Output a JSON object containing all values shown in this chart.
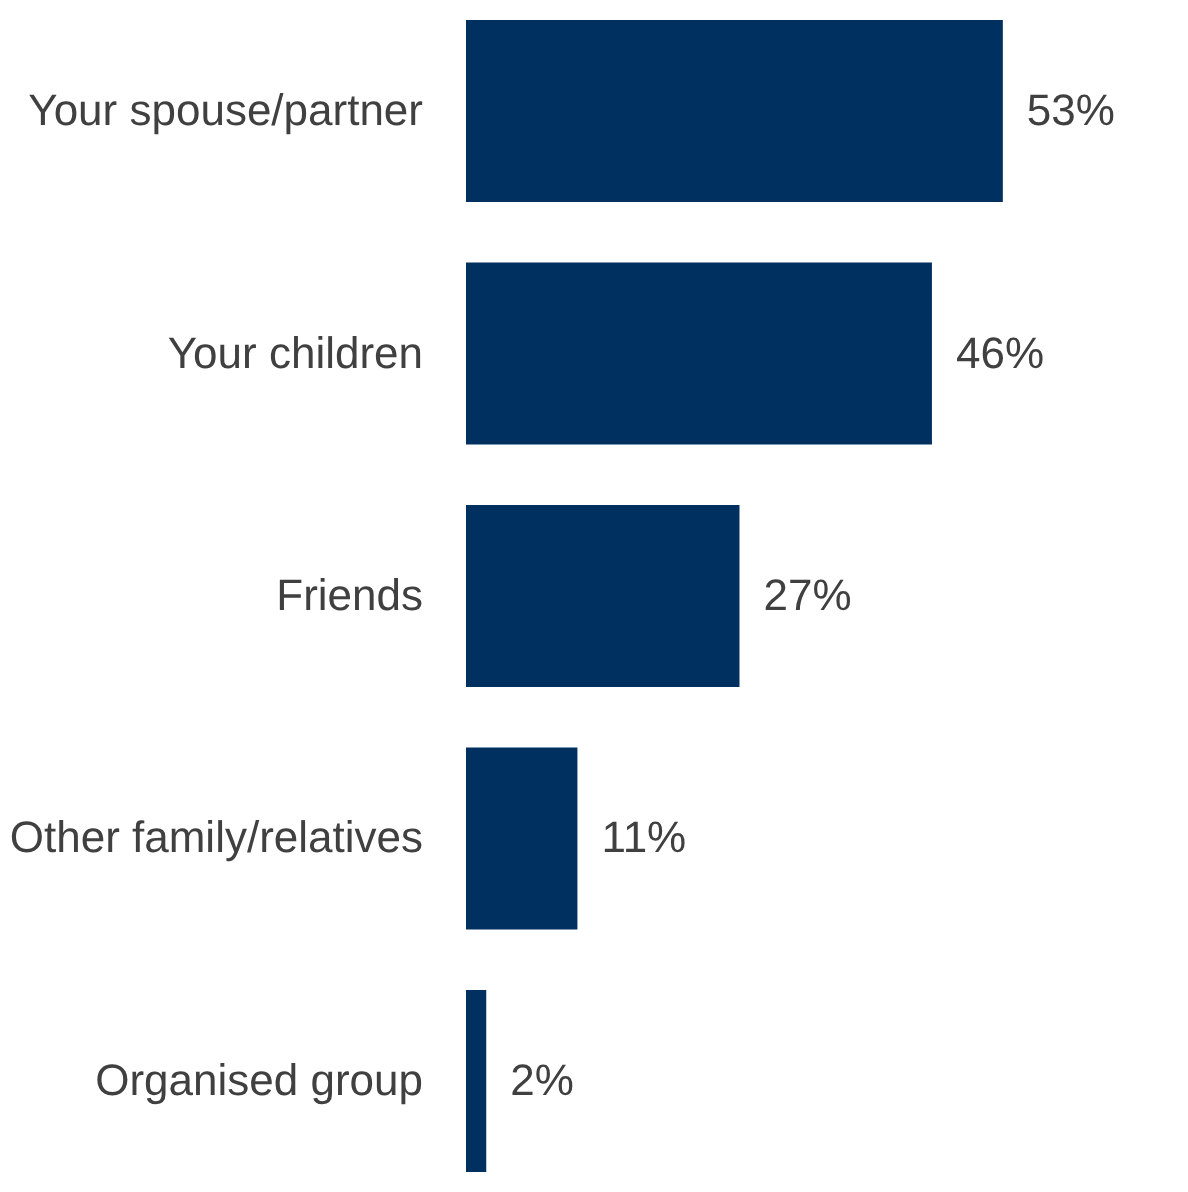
{
  "chart_data": {
    "type": "bar",
    "orientation": "horizontal",
    "categories": [
      "Your spouse/partner",
      "Your children",
      "Friends",
      "Other family/relatives",
      "Organised group"
    ],
    "values": [
      53,
      46,
      27,
      11,
      2
    ],
    "value_labels": [
      "53%",
      "46%",
      "27%",
      "11%",
      "2%"
    ],
    "color": "#00305f",
    "grid": false
  }
}
